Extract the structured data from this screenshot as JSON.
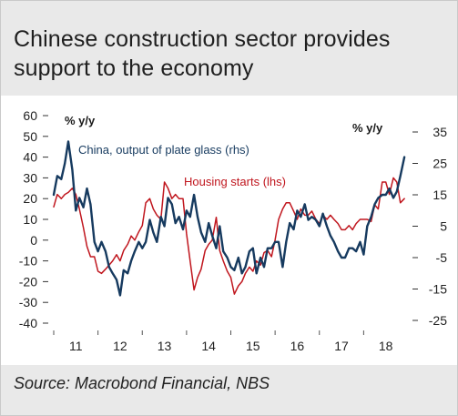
{
  "title": "Chinese construction sector provides support to the economy",
  "source": "Source: Macrobond Financial, NBS",
  "colors": {
    "background": "#e9e9e9",
    "plot_background": "#ffffff",
    "housing_starts": "#c0161e",
    "plate_glass": "#163a5f"
  },
  "chart_data": {
    "type": "line",
    "left_unit": "% y/y",
    "right_unit": "% y/y",
    "left_axis": {
      "min": -40,
      "max": 60,
      "ticks": [
        60,
        50,
        40,
        30,
        20,
        10,
        0,
        -10,
        -20,
        -30,
        -40
      ]
    },
    "right_axis": {
      "min": -25,
      "max": 35,
      "ticks": [
        35,
        25,
        15,
        5,
        -5,
        -15,
        -25
      ]
    },
    "x_axis": {
      "min": 2011.0,
      "max": 2019.0,
      "tick_labels": [
        "11",
        "12",
        "13",
        "14",
        "15",
        "16",
        "17",
        "18"
      ],
      "tick_values": [
        2011,
        2012,
        2013,
        2014,
        2015,
        2016,
        2017,
        2018
      ]
    },
    "grid": false,
    "series": [
      {
        "name": "Housing starts (lhs)",
        "axis": "left",
        "color": "#c0161e",
        "points": [
          [
            2011.0,
            16
          ],
          [
            2011.08,
            22
          ],
          [
            2011.17,
            20
          ],
          [
            2011.25,
            22
          ],
          [
            2011.33,
            23
          ],
          [
            2011.42,
            25
          ],
          [
            2011.5,
            22
          ],
          [
            2011.58,
            15
          ],
          [
            2011.67,
            6
          ],
          [
            2011.75,
            -3
          ],
          [
            2011.83,
            -8
          ],
          [
            2011.92,
            -8
          ],
          [
            2012.0,
            -15
          ],
          [
            2012.08,
            -16
          ],
          [
            2012.17,
            -14
          ],
          [
            2012.25,
            -12
          ],
          [
            2012.33,
            -10
          ],
          [
            2012.42,
            -7
          ],
          [
            2012.5,
            -10
          ],
          [
            2012.58,
            -5
          ],
          [
            2012.67,
            -2
          ],
          [
            2012.75,
            2
          ],
          [
            2012.83,
            0
          ],
          [
            2012.92,
            4
          ],
          [
            2013.0,
            7
          ],
          [
            2013.08,
            18
          ],
          [
            2013.17,
            20
          ],
          [
            2013.25,
            15
          ],
          [
            2013.33,
            12
          ],
          [
            2013.42,
            10
          ],
          [
            2013.5,
            28
          ],
          [
            2013.58,
            25
          ],
          [
            2013.67,
            20
          ],
          [
            2013.75,
            22
          ],
          [
            2013.83,
            20
          ],
          [
            2013.92,
            20
          ],
          [
            2014.0,
            3
          ],
          [
            2014.08,
            -10
          ],
          [
            2014.17,
            -24
          ],
          [
            2014.25,
            -18
          ],
          [
            2014.33,
            -14
          ],
          [
            2014.42,
            -5
          ],
          [
            2014.5,
            -2
          ],
          [
            2014.58,
            0
          ],
          [
            2014.67,
            11
          ],
          [
            2014.75,
            -5
          ],
          [
            2014.83,
            -10
          ],
          [
            2014.92,
            -15
          ],
          [
            2015.0,
            -18
          ],
          [
            2015.08,
            -26
          ],
          [
            2015.17,
            -22
          ],
          [
            2015.25,
            -20
          ],
          [
            2015.33,
            -16
          ],
          [
            2015.42,
            -13
          ],
          [
            2015.5,
            -15
          ],
          [
            2015.58,
            -10
          ],
          [
            2015.67,
            -12
          ],
          [
            2015.75,
            -6
          ],
          [
            2015.83,
            -5
          ],
          [
            2015.92,
            -8
          ],
          [
            2016.0,
            0
          ],
          [
            2016.08,
            10
          ],
          [
            2016.17,
            15
          ],
          [
            2016.25,
            18
          ],
          [
            2016.33,
            18
          ],
          [
            2016.42,
            14
          ],
          [
            2016.5,
            10
          ],
          [
            2016.58,
            15
          ],
          [
            2016.67,
            12
          ],
          [
            2016.75,
            12
          ],
          [
            2016.83,
            14
          ],
          [
            2016.92,
            10
          ],
          [
            2017.0,
            8
          ],
          [
            2017.08,
            12
          ],
          [
            2017.17,
            10
          ],
          [
            2017.25,
            12
          ],
          [
            2017.33,
            10
          ],
          [
            2017.42,
            8
          ],
          [
            2017.5,
            5
          ],
          [
            2017.58,
            5
          ],
          [
            2017.67,
            7
          ],
          [
            2017.75,
            5
          ],
          [
            2017.83,
            8
          ],
          [
            2017.92,
            10
          ],
          [
            2018.0,
            10
          ],
          [
            2018.08,
            10
          ],
          [
            2018.17,
            9
          ],
          [
            2018.25,
            17
          ],
          [
            2018.33,
            15
          ],
          [
            2018.42,
            28
          ],
          [
            2018.5,
            28
          ],
          [
            2018.58,
            22
          ],
          [
            2018.67,
            30
          ],
          [
            2018.75,
            28
          ],
          [
            2018.83,
            18
          ],
          [
            2018.92,
            20
          ]
        ]
      },
      {
        "name": "China, output of plate glass (rhs)",
        "axis": "right",
        "color": "#163a5f",
        "points": [
          [
            2011.0,
            15
          ],
          [
            2011.08,
            21
          ],
          [
            2011.17,
            20
          ],
          [
            2011.25,
            25
          ],
          [
            2011.33,
            32
          ],
          [
            2011.42,
            23
          ],
          [
            2011.5,
            10
          ],
          [
            2011.58,
            14
          ],
          [
            2011.67,
            11
          ],
          [
            2011.75,
            17
          ],
          [
            2011.83,
            12
          ],
          [
            2011.92,
            0
          ],
          [
            2012.0,
            -3
          ],
          [
            2012.08,
            0
          ],
          [
            2012.17,
            -3
          ],
          [
            2012.25,
            -8
          ],
          [
            2012.33,
            -10
          ],
          [
            2012.42,
            -12
          ],
          [
            2012.5,
            -17
          ],
          [
            2012.58,
            -9
          ],
          [
            2012.67,
            -10
          ],
          [
            2012.75,
            -6
          ],
          [
            2012.83,
            -3
          ],
          [
            2012.92,
            0
          ],
          [
            2013.0,
            -2
          ],
          [
            2013.08,
            0
          ],
          [
            2013.17,
            7
          ],
          [
            2013.25,
            3
          ],
          [
            2013.33,
            0
          ],
          [
            2013.42,
            8
          ],
          [
            2013.5,
            5
          ],
          [
            2013.58,
            14
          ],
          [
            2013.67,
            12
          ],
          [
            2013.75,
            6
          ],
          [
            2013.83,
            8
          ],
          [
            2013.92,
            4
          ],
          [
            2014.0,
            10
          ],
          [
            2014.08,
            8
          ],
          [
            2014.17,
            15
          ],
          [
            2014.25,
            8
          ],
          [
            2014.33,
            3
          ],
          [
            2014.42,
            0
          ],
          [
            2014.5,
            6
          ],
          [
            2014.58,
            2
          ],
          [
            2014.67,
            -2
          ],
          [
            2014.75,
            5
          ],
          [
            2014.83,
            -3
          ],
          [
            2014.92,
            -5
          ],
          [
            2015.0,
            -8
          ],
          [
            2015.08,
            -9
          ],
          [
            2015.17,
            -5
          ],
          [
            2015.25,
            -10
          ],
          [
            2015.33,
            -8
          ],
          [
            2015.42,
            -3
          ],
          [
            2015.5,
            -2
          ],
          [
            2015.58,
            -10
          ],
          [
            2015.67,
            -5
          ],
          [
            2015.75,
            -8
          ],
          [
            2015.83,
            -2
          ],
          [
            2015.92,
            -2
          ],
          [
            2016.0,
            0
          ],
          [
            2016.08,
            0
          ],
          [
            2016.17,
            -8
          ],
          [
            2016.25,
            0
          ],
          [
            2016.33,
            6
          ],
          [
            2016.42,
            4
          ],
          [
            2016.5,
            10
          ],
          [
            2016.58,
            8
          ],
          [
            2016.67,
            12
          ],
          [
            2016.75,
            7
          ],
          [
            2016.83,
            8
          ],
          [
            2016.92,
            7
          ],
          [
            2017.0,
            5
          ],
          [
            2017.08,
            9
          ],
          [
            2017.17,
            5
          ],
          [
            2017.25,
            2
          ],
          [
            2017.33,
            0
          ],
          [
            2017.42,
            -3
          ],
          [
            2017.5,
            -5
          ],
          [
            2017.58,
            -5
          ],
          [
            2017.67,
            -2
          ],
          [
            2017.75,
            -2
          ],
          [
            2017.83,
            -3
          ],
          [
            2017.92,
            0
          ],
          [
            2018.0,
            -4
          ],
          [
            2018.08,
            5
          ],
          [
            2018.17,
            8
          ],
          [
            2018.25,
            12
          ],
          [
            2018.33,
            14
          ],
          [
            2018.42,
            15
          ],
          [
            2018.5,
            15
          ],
          [
            2018.58,
            17
          ],
          [
            2018.67,
            14
          ],
          [
            2018.75,
            16
          ],
          [
            2018.83,
            21
          ],
          [
            2018.92,
            27
          ]
        ]
      }
    ],
    "labels": {
      "housing_starts": "Housing starts (lhs)",
      "plate_glass": "China, output of plate glass (rhs)"
    }
  }
}
